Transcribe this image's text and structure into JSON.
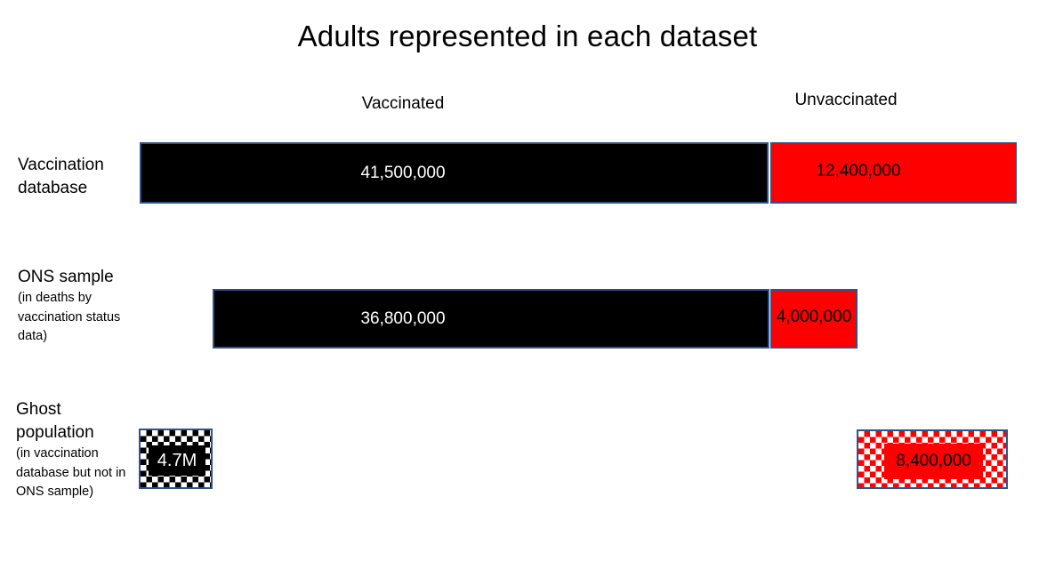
{
  "title": "Adults represented in each dataset",
  "column_headers": {
    "vaccinated": "Vaccinated",
    "unvaccinated": "Unvaccinated"
  },
  "rows": [
    {
      "title": "Vaccination database",
      "note": "",
      "vaccinated_label": "41,500,000",
      "unvaccinated_label": "12,400,000"
    },
    {
      "title": "ONS sample",
      "note": "(in deaths by vaccination status data)",
      "vaccinated_label": "36,800,000",
      "unvaccinated_label": "4,000,000"
    },
    {
      "title": "Ghost population",
      "note": "(in vaccination database but not in ONS sample)",
      "vaccinated_label": "4.7M",
      "unvaccinated_label": "8,400,000"
    }
  ],
  "colors": {
    "vaccinated_fill": "#000000",
    "unvaccinated_fill": "#FF0000",
    "bar_border": "#2F528F",
    "vaccinated_value_text": "#FFFFFF",
    "unvaccinated_value_text": "#000000"
  },
  "chart_data": {
    "type": "bar",
    "orientation": "horizontal",
    "title": "Adults represented in each dataset",
    "categories": [
      "Vaccination database",
      "ONS sample (in deaths by vaccination status data)",
      "Ghost population (in vaccination database but not in ONS sample)"
    ],
    "series": [
      {
        "name": "Vaccinated",
        "values": [
          41500000,
          36800000,
          4700000
        ],
        "color": "#000000",
        "fill_style": [
          "solid",
          "solid",
          "checkerboard"
        ]
      },
      {
        "name": "Unvaccinated",
        "values": [
          12400000,
          4000000,
          8400000
        ],
        "color": "#FF0000",
        "fill_style": [
          "solid",
          "solid",
          "checkerboard"
        ]
      }
    ],
    "data_labels": [
      [
        "41,500,000",
        "12,400,000"
      ],
      [
        "36,800,000",
        "4,000,000"
      ],
      [
        "4.7M",
        "8,400,000"
      ]
    ],
    "legend_position": "top",
    "grid": false,
    "axes_visible": false
  }
}
